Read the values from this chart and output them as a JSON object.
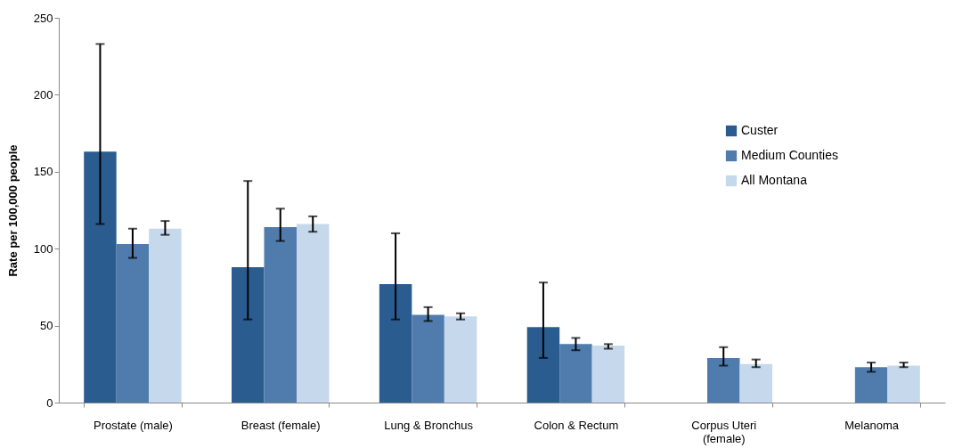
{
  "chart_data": {
    "type": "bar",
    "ylabel": "Rate per 100,000 people",
    "categories": [
      "Prostate (male)",
      "Breast (female)",
      "Lung & Bronchus",
      "Colon & Rectum",
      "Corpus Uteri (female)",
      "Melanoma"
    ],
    "series": [
      {
        "name": "Custer",
        "color": "#2a5c8f",
        "values": [
          163,
          88,
          77,
          49,
          null,
          null
        ],
        "errors": [
          [
            116,
            233
          ],
          [
            54,
            144
          ],
          [
            54,
            110
          ],
          [
            29,
            78
          ],
          null,
          null
        ]
      },
      {
        "name": "Medium Counties",
        "color": "#4f7cad",
        "values": [
          103,
          114,
          57,
          38,
          29,
          23
        ],
        "errors": [
          [
            94,
            113
          ],
          [
            105,
            126
          ],
          [
            53,
            62
          ],
          [
            34,
            42
          ],
          [
            24,
            36
          ],
          [
            20,
            26
          ]
        ]
      },
      {
        "name": "All Montana",
        "color": "#c5d8ec",
        "values": [
          113,
          116,
          56,
          37,
          25,
          24
        ],
        "errors": [
          [
            109,
            118
          ],
          [
            111,
            121
          ],
          [
            54,
            58
          ],
          [
            35,
            38
          ],
          [
            23,
            28
          ],
          [
            23,
            26
          ]
        ]
      }
    ],
    "ylim": [
      0,
      250
    ],
    "yticks": [
      0,
      50,
      100,
      150,
      200,
      250
    ],
    "grid": false,
    "legend": "top right"
  }
}
